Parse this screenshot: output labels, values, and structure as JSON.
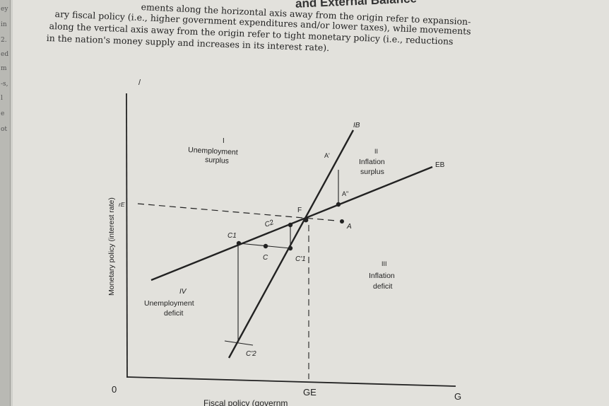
{
  "header": {
    "title_fragment": "and External Balance"
  },
  "left_page_fragments": [
    "ey",
    "in",
    "2.",
    "ed",
    "m",
    "-s,",
    "l",
    "e",
    "ot"
  ],
  "paragraph": [
    "ements along the horizontal axis away from the origin refer to expansion-",
    "ary fiscal policy (i.e., higher government expenditures and/or lower taxes), while movements",
    "along the vertical axis away from the origin refer to tight monetary policy (i.e., reductions",
    "in the nation's money supply and increases in its interest rate)."
  ],
  "figure": {
    "y_axis_label": "Monetary policy (interest rate)",
    "x_axis_label": "Fiscal policy (governm",
    "y_top_mark": "/",
    "origin_label": "0",
    "rE_label": "rE",
    "GE_label": "GE",
    "G_label": "G",
    "IB_label": "IB",
    "EB_label": "EB",
    "regions": {
      "I": {
        "numeral": "I",
        "line1": "Unemployment",
        "line2": "surplus"
      },
      "II": {
        "numeral": "II",
        "line1": "Inflation",
        "line2": "surplus"
      },
      "III": {
        "numeral": "III",
        "line1": "Inflation",
        "line2": "deficit"
      },
      "IV": {
        "numeral": "IV",
        "line1": "Unemployment",
        "line2": "deficit"
      }
    },
    "points": {
      "F": "F",
      "A": "A",
      "A_prime": "A'",
      "A_double": "A\"",
      "C": "C",
      "C1": "C1",
      "C1_prime": "C'1",
      "C2": "C2",
      "C2_prime": "C'2"
    }
  }
}
